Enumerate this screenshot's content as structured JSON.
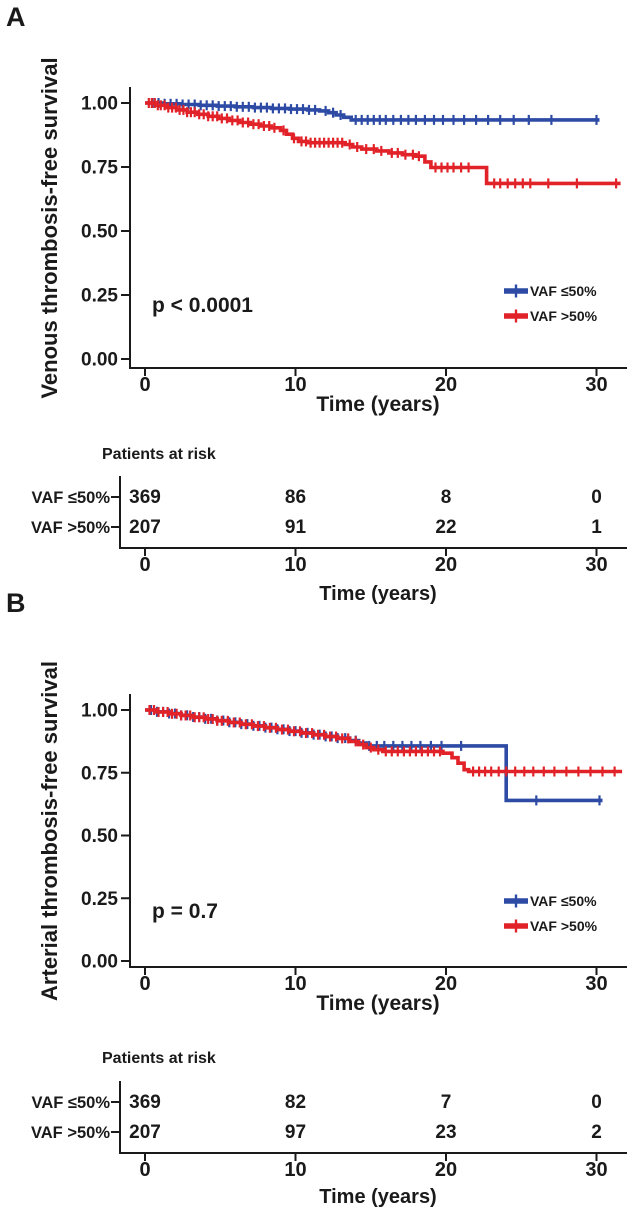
{
  "colors": {
    "blue": "#2d4ba5",
    "red": "#e12228",
    "ink": "#1a1a1a"
  },
  "chart_data": [
    {
      "type": "line",
      "panel_label": "A",
      "ylabel": "Venous thrombosis-free survival",
      "xlabel": "Time (years)",
      "p_label": "p < 0.0001",
      "xlim": [
        0,
        30
      ],
      "ylim": [
        0,
        1
      ],
      "grid": false,
      "legend_position": "inside-bottom-right",
      "x_ticks": [
        0,
        10,
        20,
        30
      ],
      "y_ticks": [
        {
          "v": 1.0,
          "label": "1.00"
        },
        {
          "v": 0.75,
          "label": "0.75"
        },
        {
          "v": 0.5,
          "label": "0.50"
        },
        {
          "v": 0.25,
          "label": "0.25"
        },
        {
          "v": 0.0,
          "label": "0.00"
        }
      ],
      "legend": [
        {
          "name": "VAF ≤50%",
          "color": "#2d4ba5"
        },
        {
          "name": "VAF >50%",
          "color": "#e12228"
        }
      ],
      "series": [
        {
          "name": "VAF ≤50%",
          "color": "#2d4ba5",
          "steps": [
            [
              0,
              1
            ],
            [
              1.2,
              0.997
            ],
            [
              2.4,
              0.994
            ],
            [
              3.6,
              0.991
            ],
            [
              4.8,
              0.988
            ],
            [
              6,
              0.985
            ],
            [
              7.2,
              0.982
            ],
            [
              8.4,
              0.979
            ],
            [
              9.6,
              0.976
            ],
            [
              10.8,
              0.973
            ],
            [
              11.6,
              0.969
            ],
            [
              12.2,
              0.962
            ],
            [
              12.7,
              0.953
            ],
            [
              13.2,
              0.944
            ],
            [
              13.7,
              0.934
            ],
            [
              30.2,
              0.934
            ]
          ],
          "censors": [
            0.5,
            0.9,
            1.3,
            1.7,
            2.1,
            2.5,
            2.9,
            3.3,
            3.7,
            4.1,
            4.5,
            4.9,
            5.3,
            5.7,
            6.1,
            6.5,
            6.9,
            7.3,
            7.7,
            8.1,
            8.5,
            8.9,
            9.3,
            9.7,
            10.1,
            10.5,
            10.9,
            11.3,
            12,
            12.5,
            13,
            14,
            14.4,
            14.8,
            15.2,
            15.6,
            16,
            16.5,
            17,
            17.5,
            18,
            18.6,
            19.2,
            19.8,
            20.5,
            21.2,
            22,
            22.8,
            23.6,
            24.5,
            25.5,
            27,
            30
          ]
        },
        {
          "name": "VAF >50%",
          "color": "#e12228",
          "steps": [
            [
              0,
              1
            ],
            [
              0.7,
              0.991
            ],
            [
              1.4,
              0.982
            ],
            [
              2.1,
              0.973
            ],
            [
              2.8,
              0.964
            ],
            [
              3.5,
              0.956
            ],
            [
              4.2,
              0.948
            ],
            [
              4.9,
              0.94
            ],
            [
              5.6,
              0.932
            ],
            [
              6.3,
              0.924
            ],
            [
              7,
              0.917
            ],
            [
              7.7,
              0.91
            ],
            [
              8.4,
              0.903
            ],
            [
              9,
              0.893
            ],
            [
              9.4,
              0.878
            ],
            [
              9.8,
              0.862
            ],
            [
              10.2,
              0.85
            ],
            [
              10.8,
              0.845
            ],
            [
              13.3,
              0.838
            ],
            [
              13.8,
              0.828
            ],
            [
              14.4,
              0.82
            ],
            [
              15.4,
              0.813
            ],
            [
              16.2,
              0.805
            ],
            [
              17.1,
              0.798
            ],
            [
              18,
              0.792
            ],
            [
              18.6,
              0.77
            ],
            [
              19,
              0.748
            ],
            [
              22.7,
              0.686
            ],
            [
              31.6,
              0.686
            ]
          ],
          "censors": [
            0.25,
            0.45,
            0.65,
            0.85,
            1.05,
            1.3,
            1.55,
            1.8,
            2.05,
            2.3,
            2.55,
            2.8,
            3.05,
            3.3,
            3.6,
            3.9,
            4.2,
            4.5,
            4.8,
            5.1,
            5.45,
            5.8,
            6.15,
            6.5,
            6.85,
            7.2,
            7.55,
            7.9,
            8.25,
            8.6,
            9.2,
            9.9,
            10.4,
            10.7,
            11,
            11.3,
            11.6,
            11.9,
            12.2,
            12.5,
            12.8,
            13.1,
            13.6,
            14.1,
            14.7,
            15.2,
            15.7,
            16.4,
            16.8,
            17.3,
            17.8,
            18.2,
            19.3,
            19.7,
            20.1,
            20.5,
            21,
            21.5,
            23.2,
            23.6,
            24.1,
            24.6,
            25.1,
            25.6,
            26.8,
            28.7,
            31.3
          ]
        }
      ],
      "risk_table": {
        "title": "Patients at risk",
        "xlabel": "Time (years)",
        "x_ticks": [
          0,
          10,
          20,
          30
        ],
        "rows": [
          {
            "label": "VAF ≤50%",
            "counts": [
              369,
              86,
              8,
              0
            ]
          },
          {
            "label": "VAF >50%",
            "counts": [
              207,
              91,
              22,
              1
            ]
          }
        ]
      }
    },
    {
      "type": "line",
      "panel_label": "B",
      "ylabel": "Arterial thrombosis-free survival",
      "xlabel": "Time (years)",
      "p_label": "p = 0.7",
      "xlim": [
        0,
        30
      ],
      "ylim": [
        0,
        1
      ],
      "grid": false,
      "legend_position": "inside-bottom-right",
      "x_ticks": [
        0,
        10,
        20,
        30
      ],
      "y_ticks": [
        {
          "v": 1.0,
          "label": "1.00"
        },
        {
          "v": 0.75,
          "label": "0.75"
        },
        {
          "v": 0.5,
          "label": "0.50"
        },
        {
          "v": 0.25,
          "label": "0.25"
        },
        {
          "v": 0.0,
          "label": "0.00"
        }
      ],
      "legend": [
        {
          "name": "VAF ≤50%",
          "color": "#2d4ba5"
        },
        {
          "name": "VAF >50%",
          "color": "#e12228"
        }
      ],
      "series": [
        {
          "name": "VAF ≤50%",
          "color": "#2d4ba5",
          "steps": [
            [
              0,
              1
            ],
            [
              0.8,
              0.993
            ],
            [
              1.6,
              0.986
            ],
            [
              2.4,
              0.979
            ],
            [
              3.2,
              0.972
            ],
            [
              4,
              0.965
            ],
            [
              4.8,
              0.958
            ],
            [
              5.6,
              0.951
            ],
            [
              6.4,
              0.944
            ],
            [
              7.2,
              0.937
            ],
            [
              8,
              0.93
            ],
            [
              8.8,
              0.923
            ],
            [
              9.6,
              0.916
            ],
            [
              10.4,
              0.909
            ],
            [
              11.2,
              0.902
            ],
            [
              12,
              0.895
            ],
            [
              12.8,
              0.888
            ],
            [
              13.6,
              0.878
            ],
            [
              14.2,
              0.868
            ],
            [
              14.7,
              0.857
            ],
            [
              24,
              0.64
            ],
            [
              30.4,
              0.64
            ]
          ],
          "censors": [
            0.4,
            0.8,
            1.2,
            1.6,
            2,
            2.4,
            2.8,
            3.2,
            3.6,
            4,
            4.4,
            4.8,
            5.2,
            5.6,
            6,
            6.4,
            6.8,
            7.2,
            7.6,
            8,
            8.4,
            8.8,
            9.2,
            9.6,
            10,
            10.4,
            10.8,
            11.2,
            11.6,
            12,
            12.4,
            12.8,
            13.3,
            14,
            14.9,
            15.4,
            15.9,
            16.5,
            17.1,
            17.7,
            18.3,
            19,
            19.7,
            21,
            26,
            30.2
          ]
        },
        {
          "name": "VAF >50%",
          "color": "#e12228",
          "steps": [
            [
              0,
              1
            ],
            [
              0.8,
              0.992
            ],
            [
              1.6,
              0.985
            ],
            [
              2.4,
              0.978
            ],
            [
              3.2,
              0.971
            ],
            [
              4,
              0.964
            ],
            [
              4.8,
              0.957
            ],
            [
              5.6,
              0.95
            ],
            [
              6.4,
              0.943
            ],
            [
              7.2,
              0.936
            ],
            [
              8,
              0.929
            ],
            [
              8.8,
              0.922
            ],
            [
              9.6,
              0.915
            ],
            [
              10.4,
              0.908
            ],
            [
              11.2,
              0.901
            ],
            [
              12,
              0.894
            ],
            [
              12.8,
              0.887
            ],
            [
              13.6,
              0.875
            ],
            [
              14.2,
              0.862
            ],
            [
              14.7,
              0.85
            ],
            [
              15.2,
              0.842
            ],
            [
              15.8,
              0.835
            ],
            [
              19.8,
              0.828
            ],
            [
              20.4,
              0.81
            ],
            [
              20.8,
              0.788
            ],
            [
              21.2,
              0.762
            ],
            [
              21.5,
              0.755
            ],
            [
              31.7,
              0.755
            ]
          ],
          "censors": [
            0.3,
            0.6,
            0.9,
            1.2,
            1.5,
            1.8,
            2.1,
            2.4,
            2.7,
            3,
            3.3,
            3.6,
            3.9,
            4.2,
            4.5,
            4.8,
            5.1,
            5.5,
            5.9,
            6.3,
            6.7,
            7.1,
            7.5,
            7.9,
            8.3,
            8.7,
            9.1,
            9.5,
            9.9,
            10.3,
            10.7,
            11.1,
            11.5,
            11.9,
            12.3,
            12.7,
            13.1,
            13.5,
            14,
            14.5,
            15,
            15.5,
            16,
            16.4,
            16.8,
            17.2,
            17.6,
            18,
            18.4,
            18.8,
            19.2,
            19.6,
            21.8,
            22.2,
            22.6,
            23,
            23.5,
            24,
            24.6,
            25.2,
            25.8,
            26.5,
            27.2,
            28,
            28.8,
            29.6,
            30.4,
            31.2
          ]
        }
      ],
      "risk_table": {
        "title": "Patients at risk",
        "xlabel": "Time (years)",
        "x_ticks": [
          0,
          10,
          20,
          30
        ],
        "rows": [
          {
            "label": "VAF ≤50%",
            "counts": [
              369,
              82,
              7,
              0
            ]
          },
          {
            "label": "VAF >50%",
            "counts": [
              207,
              97,
              23,
              2
            ]
          }
        ]
      }
    }
  ]
}
